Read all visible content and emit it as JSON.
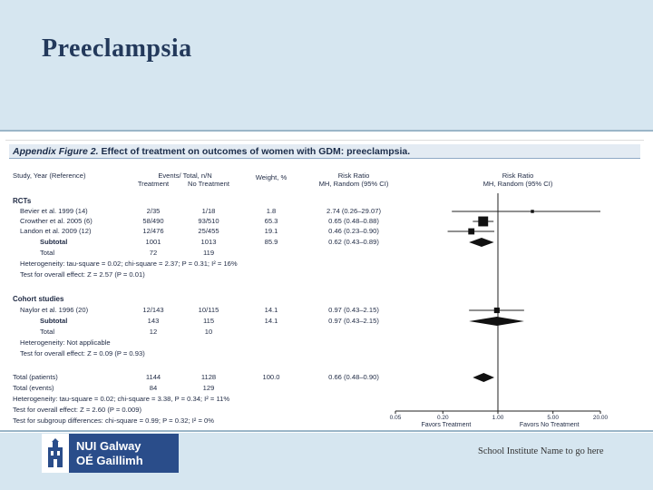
{
  "slide": {
    "title": "Preeclampsia",
    "footer_institute": "School Institute Name to go here",
    "logo": {
      "line1": "NUI Galway",
      "line2": "OÉ Gaillimh"
    }
  },
  "figure": {
    "title_prefix": "Appendix Figure 2.",
    "title_rest": "Effect of treatment on outcomes of women with GDM: preeclampsia.",
    "headers": {
      "study": "Study, Year (Reference)",
      "events": "Events/ Total, n/N",
      "treatment": "Treatment",
      "no_treatment": "No Treatment",
      "weight": "Weight, %",
      "risk_ratio": "Risk Ratio",
      "mh_random": "MH, Random (95% CI)",
      "plot_risk_ratio": "Risk Ratio",
      "plot_mh_random": "MH, Random (95% CI)"
    },
    "rows": [
      {
        "kind": "section",
        "label": "RCTs"
      },
      {
        "kind": "study",
        "label": "Bevier et al. 1999 (14)",
        "treatment": "2/35",
        "no_treatment": "1/18",
        "weight": "1.8",
        "ci": "2.74 (0.26–29.07)"
      },
      {
        "kind": "study",
        "label": "Crowther et al. 2005 (6)",
        "treatment": "58/490",
        "no_treatment": "93/510",
        "weight": "65.3",
        "ci": "0.65 (0.48–0.88)"
      },
      {
        "kind": "study",
        "label": "Landon et al. 2009 (12)",
        "treatment": "12/476",
        "no_treatment": "25/455",
        "weight": "19.1",
        "ci": "0.46 (0.23–0.90)"
      },
      {
        "kind": "subtotal",
        "label": "Subtotal",
        "treatment": "1001",
        "no_treatment": "1013",
        "weight": "85.9",
        "ci": "0.62 (0.43–0.89)"
      },
      {
        "kind": "plain",
        "label": "Total",
        "treatment": "72",
        "no_treatment": "119"
      },
      {
        "kind": "note",
        "label": "Heterogeneity: tau-square = 0.02; chi-square = 2.37; P = 0.31; I² = 16%"
      },
      {
        "kind": "note",
        "label": "Test for overall effect: Z = 2.57 (P = 0.01)"
      },
      {
        "kind": "section",
        "label": "Cohort studies"
      },
      {
        "kind": "study",
        "label": "Naylor et al. 1996 (20)",
        "treatment": "12/143",
        "no_treatment": "10/115",
        "weight": "14.1",
        "ci": "0.97 (0.43–2.15)"
      },
      {
        "kind": "subtotal",
        "label": "Subtotal",
        "treatment": "143",
        "no_treatment": "115",
        "weight": "14.1",
        "ci": "0.97 (0.43–2.15)"
      },
      {
        "kind": "plain",
        "label": "Total",
        "treatment": "12",
        "no_treatment": "10"
      },
      {
        "kind": "note",
        "label": "Heterogeneity: Not applicable"
      },
      {
        "kind": "note",
        "label": "Test for overall effect: Z = 0.09 (P = 0.93)"
      },
      {
        "kind": "plain",
        "label": "Total (patients)",
        "treatment": "1144",
        "no_treatment": "1128",
        "weight": "100.0",
        "ci": "0.66 (0.48–0.90)"
      },
      {
        "kind": "plain",
        "label": "Total (events)",
        "treatment": "84",
        "no_treatment": "129"
      },
      {
        "kind": "note",
        "label": "Heterogeneity: tau-square = 0.02; chi-square = 3.38, P = 0.34; I² = 11%"
      },
      {
        "kind": "note",
        "label": "Test for overall effect: Z = 2.60 (P = 0.009)"
      },
      {
        "kind": "note",
        "label": "Test for subgroup differences: chi-square = 0.99; P = 0.32; I² = 0%"
      }
    ]
  },
  "chart_data": {
    "type": "forest",
    "scale": "log",
    "xlim": [
      0.05,
      20.0
    ],
    "ticks": [
      "0.05",
      "0.20",
      "1.00",
      "5.00",
      "20.00"
    ],
    "tick_values": [
      0.05,
      0.2,
      1.0,
      5.0,
      20.0
    ],
    "reference": 1.0,
    "left_label": "Favors Treatment",
    "right_label": "Favors No Treatment",
    "estimates": [
      {
        "row": 1,
        "label": "Bevier et al. 1999 (14)",
        "rr": 2.74,
        "lo": 0.26,
        "hi": 29.07,
        "weight": 1.8,
        "marker": "square"
      },
      {
        "row": 2,
        "label": "Crowther et al. 2005 (6)",
        "rr": 0.65,
        "lo": 0.48,
        "hi": 0.88,
        "weight": 65.3,
        "marker": "square"
      },
      {
        "row": 3,
        "label": "Landon et al. 2009 (12)",
        "rr": 0.46,
        "lo": 0.23,
        "hi": 0.9,
        "weight": 19.1,
        "marker": "square"
      },
      {
        "row": 4,
        "label": "Subtotal (RCTs)",
        "rr": 0.62,
        "lo": 0.43,
        "hi": 0.89,
        "marker": "diamond"
      },
      {
        "row": 9,
        "label": "Naylor et al. 1996 (20)",
        "rr": 0.97,
        "lo": 0.43,
        "hi": 2.15,
        "weight": 14.1,
        "marker": "square"
      },
      {
        "row": 10,
        "label": "Subtotal (Cohort)",
        "rr": 0.97,
        "lo": 0.43,
        "hi": 2.15,
        "marker": "diamond"
      },
      {
        "row": 14,
        "label": "Total (patients)",
        "rr": 0.66,
        "lo": 0.48,
        "hi": 0.9,
        "marker": "diamond"
      }
    ]
  }
}
